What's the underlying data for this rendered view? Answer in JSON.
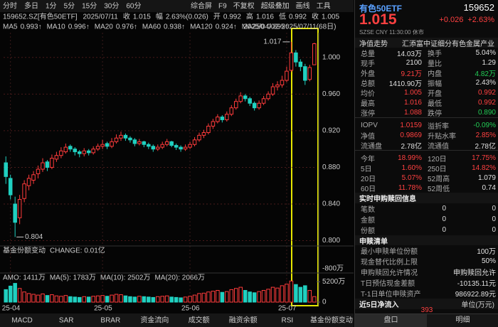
{
  "toolbar": {
    "items": [
      "分时",
      "多日",
      "1分",
      "5分",
      "15分",
      "30分",
      "60分"
    ],
    "tools": [
      "综合屏",
      "F9",
      "不复权",
      "超级叠加",
      "画线",
      "工具"
    ]
  },
  "info": {
    "code": "159652.SZ[有色50ETF]",
    "date": "2025/07/11",
    "fields": [
      {
        "l": "收",
        "v": "1.015"
      },
      {
        "l": "幅",
        "v": "2.63%(0.026)"
      },
      {
        "l": "开",
        "v": "0.992"
      },
      {
        "l": "高",
        "v": "1.016"
      },
      {
        "l": "低",
        "v": "0.992"
      },
      {
        "l": "收",
        "v": "1.005"
      }
    ]
  },
  "ma_legend": [
    {
      "name": "MA5",
      "value": "0.993↑",
      "color": "#ffffff"
    },
    {
      "name": "MA10",
      "value": "0.996↑",
      "color": "#f0d000"
    },
    {
      "name": "MA20",
      "value": "0.976↑",
      "color": "#d050e0"
    },
    {
      "name": "MA60",
      "value": "0.938↑",
      "color": "#30c040"
    },
    {
      "name": "MA120",
      "value": "0.924↑",
      "color": "#7090ff"
    },
    {
      "name": "MA250",
      "value": "0.895↑",
      "color": "#3060ff"
    }
  ],
  "range": "2025/04/02-2025/07/11(68日)",
  "chart_data": {
    "type": "candlestick",
    "up_color": "#ff3b3b",
    "down_color": "#20d0c0",
    "high_label": "1.017",
    "low_label": "0.804",
    "grid": true,
    "categories": [
      null,
      "25-04",
      null,
      null,
      null,
      null,
      null,
      null,
      null,
      null,
      null,
      null,
      null,
      null,
      null,
      null,
      null,
      null,
      null,
      null,
      null,
      "25-05",
      null,
      null,
      null,
      null,
      null,
      null,
      null,
      null,
      null,
      null,
      null,
      null,
      null,
      null,
      null,
      null,
      null,
      null,
      "25-06",
      null,
      null,
      null,
      null,
      null,
      null,
      null,
      null,
      null,
      null,
      null,
      null,
      null,
      null,
      null,
      null,
      null,
      null,
      null,
      null,
      "25-07",
      null,
      null,
      null,
      null,
      null,
      null
    ],
    "ohlc": [
      [
        0.885,
        0.892,
        0.862,
        0.87
      ],
      [
        0.868,
        0.872,
        0.845,
        0.85
      ],
      [
        0.84,
        0.848,
        0.804,
        0.82
      ],
      [
        0.825,
        0.85,
        0.818,
        0.845
      ],
      [
        0.846,
        0.866,
        0.842,
        0.862
      ],
      [
        0.86,
        0.872,
        0.855,
        0.868
      ],
      [
        0.866,
        0.876,
        0.862,
        0.872
      ],
      [
        0.873,
        0.882,
        0.868,
        0.878
      ],
      [
        0.878,
        0.89,
        0.875,
        0.885
      ],
      [
        0.886,
        0.888,
        0.876,
        0.88
      ],
      [
        0.88,
        0.894,
        0.878,
        0.89
      ],
      [
        0.889,
        0.897,
        0.886,
        0.893
      ],
      [
        0.893,
        0.902,
        0.89,
        0.898
      ],
      [
        0.897,
        0.906,
        0.895,
        0.902
      ],
      [
        0.903,
        0.905,
        0.897,
        0.9
      ],
      [
        0.9,
        0.902,
        0.893,
        0.897
      ],
      [
        0.897,
        0.899,
        0.891,
        0.895
      ],
      [
        0.895,
        0.901,
        0.892,
        0.898
      ],
      [
        0.898,
        0.9,
        0.893,
        0.896
      ],
      [
        0.896,
        0.903,
        0.894,
        0.9
      ],
      [
        0.9,
        0.906,
        0.898,
        0.903
      ],
      [
        0.903,
        0.91,
        0.9,
        0.905
      ],
      [
        0.906,
        0.908,
        0.9,
        0.903
      ],
      [
        0.903,
        0.912,
        0.901,
        0.908
      ],
      [
        0.908,
        0.916,
        0.906,
        0.912
      ],
      [
        0.912,
        0.919,
        0.909,
        0.915
      ],
      [
        0.915,
        0.917,
        0.909,
        0.912
      ],
      [
        0.912,
        0.914,
        0.907,
        0.91
      ],
      [
        0.91,
        0.912,
        0.903,
        0.906
      ],
      [
        0.906,
        0.911,
        0.904,
        0.908
      ],
      [
        0.908,
        0.909,
        0.902,
        0.905
      ],
      [
        0.905,
        0.907,
        0.9,
        0.903
      ],
      [
        0.903,
        0.905,
        0.897,
        0.9
      ],
      [
        0.9,
        0.905,
        0.898,
        0.902
      ],
      [
        0.902,
        0.908,
        0.9,
        0.905
      ],
      [
        0.905,
        0.911,
        0.903,
        0.908
      ],
      [
        0.908,
        0.909,
        0.902,
        0.904
      ],
      [
        0.904,
        0.906,
        0.899,
        0.902
      ],
      [
        0.902,
        0.904,
        0.897,
        0.9
      ],
      [
        0.9,
        0.905,
        0.898,
        0.902
      ],
      [
        0.902,
        0.908,
        0.9,
        0.905
      ],
      [
        0.905,
        0.913,
        0.903,
        0.91
      ],
      [
        0.91,
        0.918,
        0.908,
        0.915
      ],
      [
        0.915,
        0.921,
        0.912,
        0.918
      ],
      [
        0.918,
        0.928,
        0.916,
        0.925
      ],
      [
        0.925,
        0.933,
        0.922,
        0.93
      ],
      [
        0.93,
        0.938,
        0.928,
        0.935
      ],
      [
        0.935,
        0.937,
        0.929,
        0.932
      ],
      [
        0.932,
        0.941,
        0.93,
        0.938
      ],
      [
        0.938,
        0.948,
        0.936,
        0.945
      ],
      [
        0.945,
        0.955,
        0.943,
        0.952
      ],
      [
        0.952,
        0.962,
        0.95,
        0.958
      ],
      [
        0.958,
        0.96,
        0.952,
        0.955
      ],
      [
        0.955,
        0.957,
        0.947,
        0.95
      ],
      [
        0.95,
        0.952,
        0.942,
        0.945
      ],
      [
        0.945,
        0.953,
        0.943,
        0.95
      ],
      [
        0.95,
        0.958,
        0.948,
        0.955
      ],
      [
        0.955,
        0.963,
        0.953,
        0.96
      ],
      [
        0.96,
        0.972,
        0.958,
        0.968
      ],
      [
        0.968,
        0.974,
        0.964,
        0.97
      ],
      [
        0.97,
        0.98,
        0.967,
        0.975
      ],
      [
        0.975,
        0.99,
        0.973,
        0.985
      ],
      [
        0.986,
        1.017,
        0.984,
        1.005
      ],
      [
        1.005,
        1.008,
        0.99,
        0.995
      ],
      [
        0.995,
        0.998,
        0.985,
        0.99
      ],
      [
        0.99,
        0.993,
        0.97,
        0.975
      ],
      [
        0.976,
        0.992,
        0.974,
        0.989
      ],
      [
        0.992,
        1.016,
        0.992,
        1.015
      ]
    ],
    "ylim": [
      0.795,
      1.027
    ],
    "yticks": [
      {
        "value": 1.0,
        "label": "1.000"
      },
      {
        "value": 0.96,
        "label": "0.960"
      },
      {
        "value": 0.92,
        "label": "0.920"
      },
      {
        "value": 0.88,
        "label": "0.880"
      },
      {
        "value": 0.84,
        "label": "0.840"
      },
      {
        "value": 0.8,
        "label": "0.800"
      }
    ]
  },
  "fund_panel": {
    "title": "基金份额变动",
    "change": "CHANGE: 0.01亿",
    "tick": "-800万"
  },
  "amo": {
    "type": "bar",
    "legend": [
      {
        "text": "AMO: 1411万",
        "color": "#ffffff"
      },
      {
        "text": "MA(5): 1783万",
        "color": "#f0d000"
      },
      {
        "text": "MA(10): 2502万",
        "color": "#d050e0"
      },
      {
        "text": "MA(20): 2066万",
        "color": "#30c040"
      }
    ],
    "values": [
      3200,
      4100,
      4800,
      3500,
      2600,
      2200,
      2000,
      1800,
      2100,
      1700,
      1900,
      1600,
      1500,
      1700,
      1400,
      1300,
      1200,
      1400,
      1300,
      1500,
      1600,
      1700,
      1500,
      1800,
      2000,
      1900,
      1600,
      1400,
      1300,
      1500,
      1400,
      1300,
      1200,
      1400,
      1500,
      1600,
      1300,
      1200,
      1100,
      1300,
      1500,
      1800,
      2200,
      2300,
      2600,
      2800,
      3000,
      2500,
      2700,
      3200,
      3500,
      3800,
      3000,
      2600,
      2400,
      2700,
      3000,
      3300,
      3800,
      3600,
      4200,
      4600,
      5400,
      4500,
      3800,
      4200,
      3000,
      1411
    ],
    "ylim": [
      0,
      6000
    ],
    "yticks": [
      {
        "value": 5200,
        "label": "5200万"
      },
      0
    ]
  },
  "tabs": [
    "MACD",
    "SAR",
    "BRAR",
    "资金流向",
    "成交额",
    "融资余额",
    "RSI",
    "基金份额变动"
  ],
  "right": {
    "name": "有色50ETF",
    "code": "159652",
    "price": "1.015",
    "change": "+0.026",
    "pct": "+2.63%",
    "meta": "SZSE CNY 11:30:00 休市",
    "nav_title": "净值走势",
    "fund_name": "汇添富中证细分有色金属产业",
    "quote": [
      {
        "l": "总量",
        "v": "14.03万",
        "c": "#e0e0e0",
        "l2": "换手",
        "v2": "5.04%",
        "c2": "#e0e0e0"
      },
      {
        "l": "现手",
        "v": "2100",
        "c": "#e0e0e0",
        "l2": "量比",
        "v2": "1.29",
        "c2": "#e0e0e0"
      },
      {
        "l": "外盘",
        "v": "9.21万",
        "c": "#ff4040",
        "l2": "内盘",
        "v2": "4.82万",
        "c2": "#22cc55"
      },
      {
        "l": "总额",
        "v": "1410.90万",
        "c": "#e0e0e0",
        "l2": "振幅",
        "v2": "2.43%",
        "c2": "#e0e0e0"
      },
      {
        "l": "均价",
        "v": "1.005",
        "c": "#ff4040",
        "l2": "开盘",
        "v2": "0.992",
        "c2": "#ff4040"
      },
      {
        "l": "最高",
        "v": "1.016",
        "c": "#ff4040",
        "l2": "最低",
        "v2": "0.992",
        "c2": "#ff4040"
      },
      {
        "l": "涨停",
        "v": "1.088",
        "c": "#ff4040",
        "l2": "跌停",
        "v2": "0.890",
        "c2": "#22cc55"
      }
    ],
    "nav": [
      {
        "l": "IOPV",
        "v": "1.0159",
        "c": "#ff4040",
        "l2": "溢折率",
        "v2": "-0.09%",
        "c2": "#22cc55"
      },
      {
        "l": "净值",
        "v": "0.9869",
        "c": "#ff4040",
        "l2": "升贴水率",
        "v2": "2.85%",
        "c2": "#ff4040"
      },
      {
        "l": "流通盘",
        "v": "2.78亿",
        "c": "#e0e0e0",
        "l2": "流通值",
        "v2": "2.78亿",
        "c2": "#e0e0e0"
      }
    ],
    "perf": [
      {
        "l": "今年",
        "v": "18.99%",
        "c": "#ff4040",
        "l2": "120日",
        "v2": "17.75%",
        "c2": "#ff4040"
      },
      {
        "l": "5日",
        "v": "1.60%",
        "c": "#ff4040",
        "l2": "250日",
        "v2": "14.82%",
        "c2": "#ff4040"
      },
      {
        "l": "20日",
        "v": "5.07%",
        "c": "#ff4040",
        "l2": "52周高",
        "v2": "1.079",
        "c2": "#e0e0e0"
      },
      {
        "l": "60日",
        "v": "11.78%",
        "c": "#ff4040",
        "l2": "52周低",
        "v2": "0.74",
        "c2": "#e0e0e0"
      }
    ],
    "realtime_title": "实时申购赎回信息",
    "realtime": [
      {
        "l": "笔数",
        "v": "0",
        "v2": "0"
      },
      {
        "l": "金额",
        "v": "0",
        "v2": "0"
      },
      {
        "l": "份额",
        "v": "0",
        "v2": "0"
      }
    ],
    "list_title": "申赎清单",
    "list": [
      {
        "l": "最小申赎单位份额",
        "v": "100万"
      },
      {
        "l": "现金替代比例上限",
        "v": "50%"
      },
      {
        "l": "申购赎回允许情况",
        "v": "申购赎回允许"
      },
      {
        "l": "T日预估现金差额",
        "v": "-10135.11元"
      },
      {
        "l": "T-1日单位申赎资产",
        "v": "986922.89元"
      }
    ],
    "flow_title": "近5日净流入",
    "flow_unit": "单位(万元)",
    "flow_value": "393",
    "footer": [
      "盘口",
      "明细"
    ]
  }
}
